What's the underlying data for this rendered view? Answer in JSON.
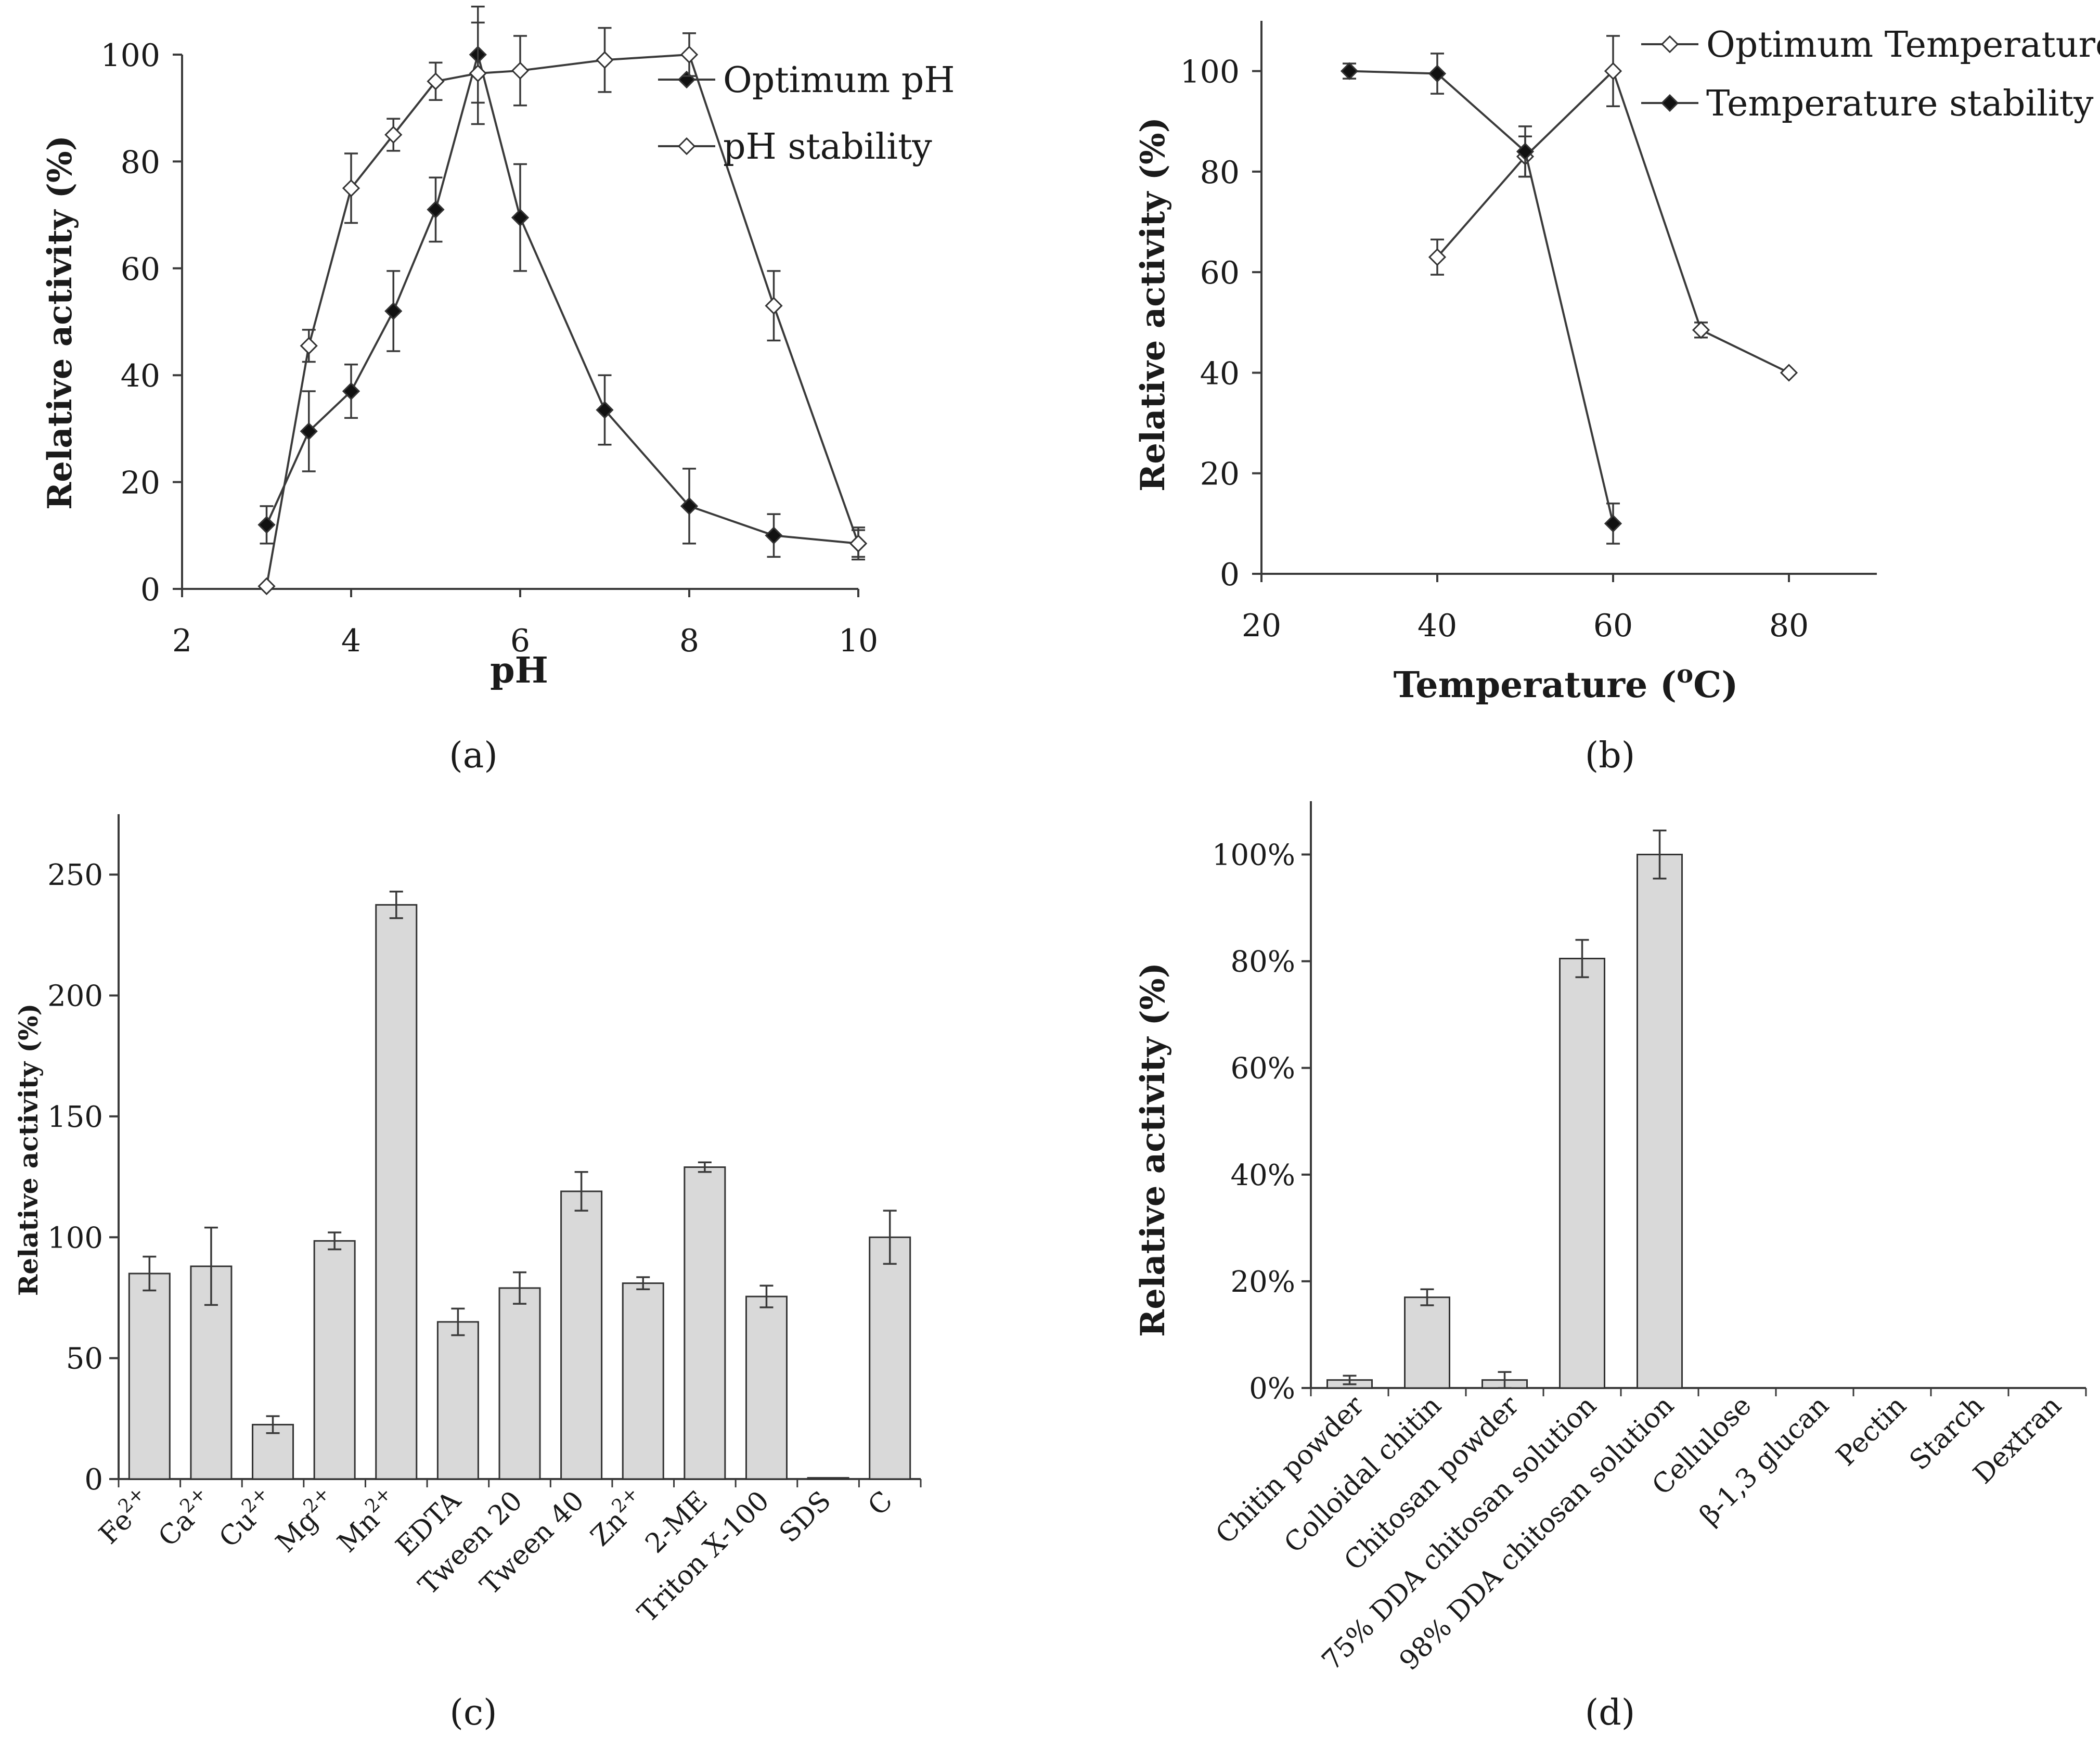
{
  "chart_data": [
    {
      "panel": "(a)",
      "type": "line",
      "xlabel": "pH",
      "ylabel": "Relative activity (%)",
      "xlim": [
        2,
        10
      ],
      "ylim": [
        0,
        100
      ],
      "xticks": [
        "2",
        "4",
        "6",
        "8",
        "10"
      ],
      "yticks": [
        "0",
        "20",
        "40",
        "60",
        "80",
        "100"
      ],
      "legend_position": "top-right",
      "series": [
        {
          "name": "Optimum pH",
          "marker": "filled-diamond",
          "x": [
            3,
            3.5,
            4,
            4.5,
            5,
            5.5,
            6,
            7,
            8,
            9,
            10
          ],
          "values": [
            12,
            29.5,
            37,
            52,
            71,
            100,
            69.5,
            33.5,
            15.5,
            10,
            8.5
          ],
          "errors": [
            3.5,
            7.5,
            5,
            7.5,
            6,
            9,
            10,
            6.5,
            7,
            4,
            3
          ]
        },
        {
          "name": "pH stability",
          "marker": "open-diamond",
          "x": [
            3,
            3.5,
            4,
            4.5,
            5,
            5.5,
            6,
            7,
            8,
            9,
            10
          ],
          "values": [
            0.5,
            45.5,
            75,
            85,
            95,
            96.5,
            97,
            99,
            100,
            53,
            8.5
          ],
          "errors": [
            0,
            3,
            6.5,
            3,
            3.5,
            9.5,
            6.5,
            6,
            4,
            6.5,
            2.5
          ]
        }
      ]
    },
    {
      "panel": "(b)",
      "type": "line",
      "xlabel": "Temperature (",
      "xlabel_sup": "o",
      "xlabel_end": "C)",
      "ylabel": "Relative activity (%)",
      "xlim": [
        20,
        90
      ],
      "ylim": [
        0,
        110
      ],
      "xticks": [
        "20",
        "40",
        "60",
        "80"
      ],
      "yticks": [
        "0",
        "20",
        "40",
        "60",
        "80",
        "100"
      ],
      "legend_position": "top-right",
      "series": [
        {
          "name": "Optimum Temperature",
          "marker": "open-diamond",
          "x": [
            40,
            50,
            60,
            70,
            80
          ],
          "values": [
            63,
            83,
            100,
            48.5,
            40
          ],
          "errors": [
            3.5,
            4,
            7,
            1.5,
            0
          ]
        },
        {
          "name": "Temperature stability",
          "marker": "filled-diamond",
          "x": [
            30,
            40,
            50,
            60
          ],
          "values": [
            100,
            99.5,
            84,
            10
          ],
          "errors": [
            1.5,
            4,
            5,
            4
          ]
        }
      ]
    },
    {
      "panel": "(c)",
      "type": "bar",
      "ylabel": "Relative activity (%)",
      "ylim": [
        0,
        275
      ],
      "yticks": [
        "0",
        "50",
        "100",
        "150",
        "200",
        "250"
      ],
      "categories": [
        {
          "base": "Fe",
          "sup": "2+"
        },
        {
          "base": "Ca",
          "sup": "2+"
        },
        {
          "base": "Cu",
          "sup": "2+"
        },
        {
          "base": "Mg",
          "sup": "2+"
        },
        {
          "base": "Mn",
          "sup": "2+"
        },
        {
          "base": "EDTA",
          "sup": ""
        },
        {
          "base": "Tween 20",
          "sup": ""
        },
        {
          "base": "Tween 40",
          "sup": ""
        },
        {
          "base": "Zn",
          "sup": "2+"
        },
        {
          "base": "2-ME",
          "sup": ""
        },
        {
          "base": "Triton X-100",
          "sup": ""
        },
        {
          "base": "SDS",
          "sup": ""
        },
        {
          "base": "C",
          "sup": ""
        }
      ],
      "values": [
        85,
        88,
        22.5,
        98.5,
        237.5,
        65,
        79,
        119,
        81,
        129,
        75.5,
        0.5,
        100
      ],
      "errors": [
        7,
        16,
        3.5,
        3.5,
        5.5,
        5.5,
        6.5,
        8,
        2.5,
        2,
        4.5,
        0,
        11
      ]
    },
    {
      "panel": "(d)",
      "type": "bar",
      "ylabel": "Relative activity (%)",
      "ylim": [
        0,
        110
      ],
      "yticks": [
        "0%",
        "20%",
        "40%",
        "60%",
        "80%",
        "100%"
      ],
      "categories": [
        "Chitin powder",
        "Colloidal chitin",
        "Chitosan powder",
        "75% DDA chitosan solution",
        "98% DDA chitosan solution",
        "Cellulose",
        "β-1,3 glucan",
        "Pectin",
        "Starch",
        "Dextran"
      ],
      "values": [
        1.5,
        17,
        1.5,
        80.5,
        100,
        0,
        0,
        0,
        0,
        0
      ],
      "errors": [
        0.8,
        1.5,
        1.5,
        3.5,
        4.5,
        0,
        0,
        0,
        0,
        0
      ]
    }
  ],
  "colors": {
    "bar_fill": "#d9d9d9",
    "line": "#3a3a3a",
    "text": "#1a1a1a"
  },
  "captions": [
    "(a)",
    "(b)",
    "(c)",
    "(d)"
  ]
}
